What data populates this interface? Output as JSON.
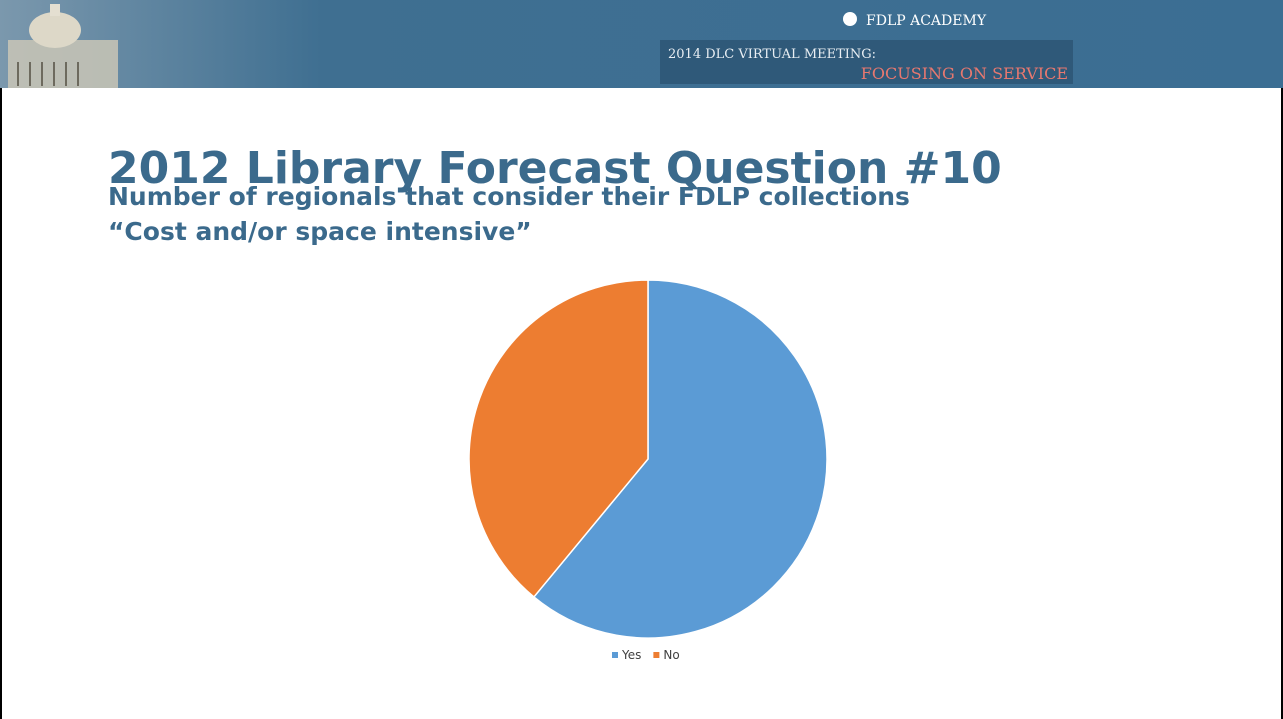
{
  "header": {
    "brand": "FDLP ACADEMY",
    "meeting": "2014 DLC VIRTUAL MEETING:",
    "theme": "FOCUSING ON SERVICE"
  },
  "chart_data": {
    "type": "pie",
    "title": "2012 Library Forecast Question #10",
    "subtitle": [
      "Number of regionals that consider their FDLP collections",
      "“Cost and/or space intensive”"
    ],
    "categories": [
      "Yes",
      "No"
    ],
    "values": [
      61,
      39
    ],
    "colors": [
      "#5b9bd5",
      "#ed7d31"
    ]
  }
}
